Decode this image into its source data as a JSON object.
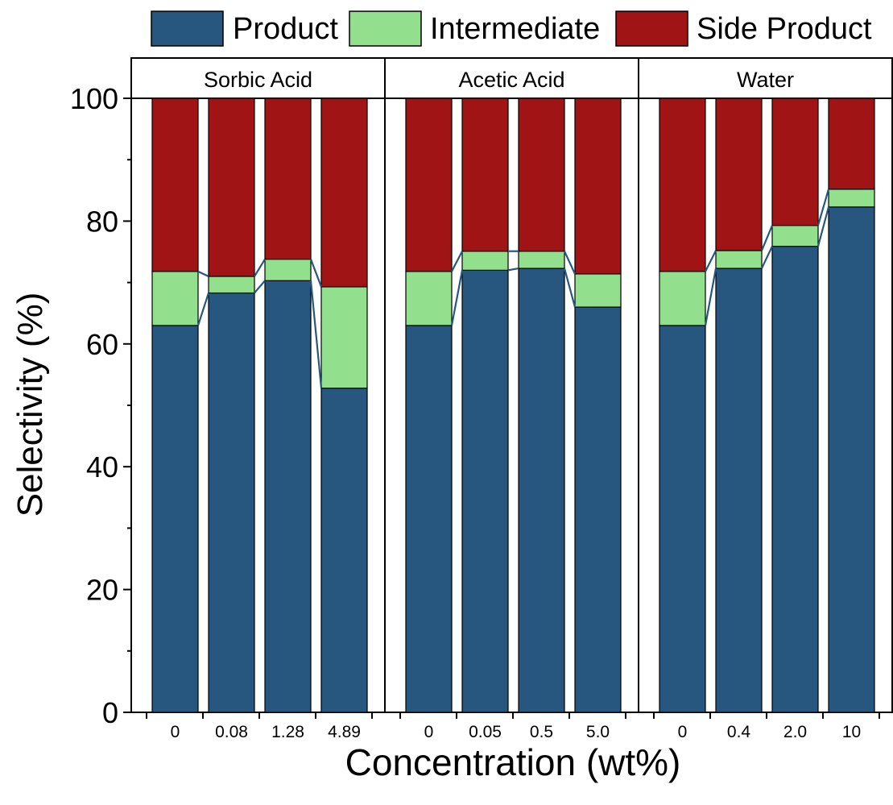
{
  "colors": {
    "product": "#27577f",
    "intermediate": "#92e08d",
    "side_product": "#a01416",
    "connector": "#27577f"
  },
  "chart_data": {
    "type": "bar",
    "stacked": true,
    "xlabel": "Concentration (wt%)",
    "ylabel": "Selectivity (%)",
    "ylim": [
      0,
      100
    ],
    "yticks": [
      0,
      20,
      40,
      60,
      80,
      100
    ],
    "legend": {
      "placement": "top",
      "entries": [
        "Product",
        "Intermediate",
        "Side Product"
      ]
    },
    "panels": [
      {
        "name": "Sorbic Acid",
        "categories": [
          "0",
          "0.08",
          "1.28",
          "4.89"
        ],
        "series": [
          {
            "name": "Product",
            "values": [
              63.0,
              68.3,
              70.3,
              52.8
            ]
          },
          {
            "name": "Intermediate",
            "values": [
              8.8,
              2.7,
              3.5,
              16.5
            ]
          },
          {
            "name": "Side Product",
            "values": [
              28.2,
              29.0,
              26.2,
              30.7
            ]
          }
        ]
      },
      {
        "name": "Acetic Acid",
        "categories": [
          "0",
          "0.05",
          "0.5",
          "5.0"
        ],
        "series": [
          {
            "name": "Product",
            "values": [
              63.0,
              72.0,
              72.3,
              66.0
            ]
          },
          {
            "name": "Intermediate",
            "values": [
              8.8,
              3.1,
              2.8,
              5.4
            ]
          },
          {
            "name": "Side Product",
            "values": [
              28.2,
              24.9,
              24.9,
              28.6
            ]
          }
        ]
      },
      {
        "name": "Water",
        "categories": [
          "0",
          "0.4",
          "2.0",
          "10"
        ],
        "series": [
          {
            "name": "Product",
            "values": [
              63.0,
              72.3,
              75.9,
              82.3
            ]
          },
          {
            "name": "Intermediate",
            "values": [
              8.8,
              2.9,
              3.4,
              2.9
            ]
          },
          {
            "name": "Side Product",
            "values": [
              28.2,
              24.8,
              20.7,
              14.8
            ]
          }
        ]
      }
    ]
  }
}
